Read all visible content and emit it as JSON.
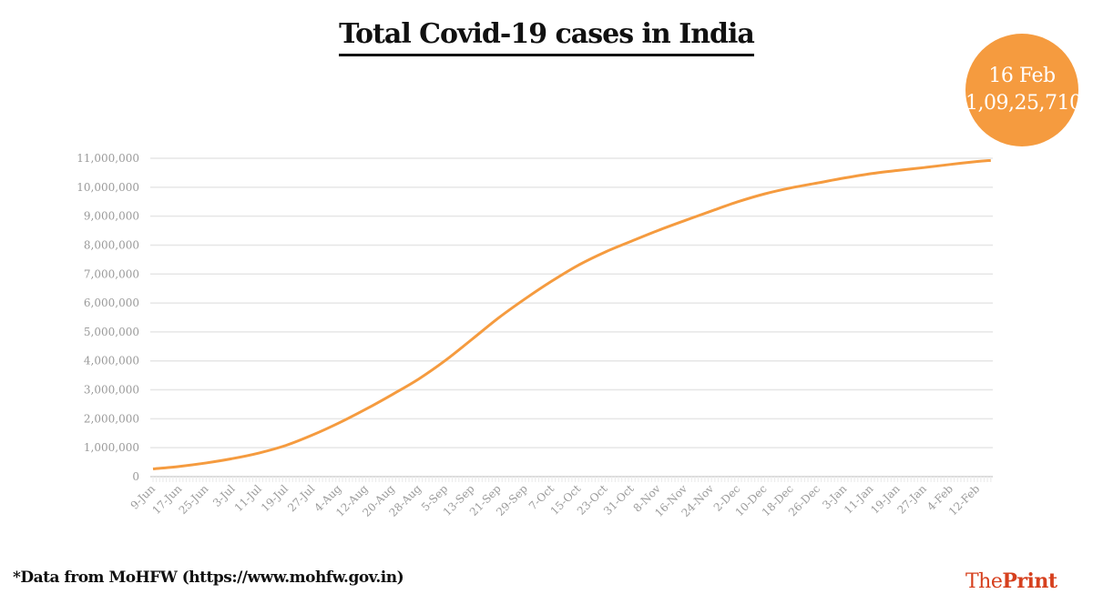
{
  "chart_data": {
    "type": "line",
    "title": "Total Covid-19 cases in India",
    "xlabel": "",
    "ylabel": "",
    "x": [
      "9-Jun",
      "17-Jun",
      "25-Jun",
      "3-Jul",
      "11-Jul",
      "19-Jul",
      "27-Jul",
      "4-Aug",
      "12-Aug",
      "20-Aug",
      "28-Aug",
      "5-Sep",
      "13-Sep",
      "21-Sep",
      "29-Sep",
      "7-Oct",
      "15-Oct",
      "23-Oct",
      "31-Oct",
      "8-Nov",
      "16-Nov",
      "24-Nov",
      "2-Dec",
      "10-Dec",
      "18-Dec",
      "26-Dec",
      "3-Jan",
      "11-Jan",
      "19-Jan",
      "27-Jan",
      "4-Feb",
      "12-Feb",
      "16-Feb"
    ],
    "series": [
      {
        "values": [
          267000,
          354000,
          473000,
          626000,
          820000,
          1080000,
          1440000,
          1860000,
          2330000,
          2840000,
          3380000,
          4020000,
          4750000,
          5490000,
          6150000,
          6760000,
          7310000,
          7760000,
          8140000,
          8510000,
          8850000,
          9180000,
          9500000,
          9770000,
          9980000,
          10150000,
          10320000,
          10470000,
          10580000,
          10680000,
          10790000,
          10890000,
          10925710
        ]
      }
    ],
    "x_tick_labels": [
      "9-Jun",
      "17-Jun",
      "25-Jun",
      "3-Jul",
      "11-Jul",
      "19-Jul",
      "27-Jul",
      "4-Aug",
      "12-Aug",
      "20-Aug",
      "28-Aug",
      "5-Sep",
      "13-Sep",
      "21-Sep",
      "29-Sep",
      "7-Oct",
      "15-Oct",
      "23-Oct",
      "31-Oct",
      "8-Nov",
      "16-Nov",
      "24-Nov",
      "2-Dec",
      "10-Dec",
      "18-Dec",
      "26-Dec",
      "3-Jan",
      "11-Jan",
      "19-Jan",
      "27-Jan",
      "4-Feb",
      "12-Feb"
    ],
    "y_tick_labels": [
      "0",
      "1,000,000",
      "2,000,000",
      "3,000,000",
      "4,000,000",
      "5,000,000",
      "6,000,000",
      "7,000,000",
      "8,000,000",
      "9,000,000",
      "10,000,000",
      "11,000,000"
    ],
    "ylim": [
      0,
      11000000
    ],
    "grid": true,
    "line_color": "#f59b3f"
  },
  "badge": {
    "date": "16 Feb",
    "value": "1,09,25,710",
    "color": "#f59b3f"
  },
  "source": "*Data from MoHFW (https://www.mohfw.gov.in)",
  "logo": {
    "the": "The",
    "print": "Print",
    "color": "#d6401e"
  }
}
